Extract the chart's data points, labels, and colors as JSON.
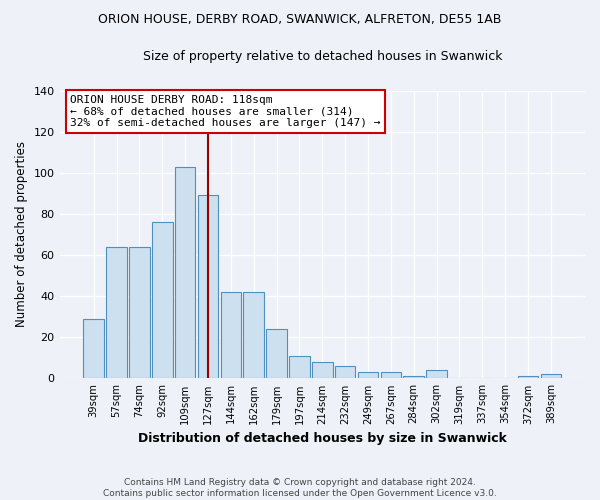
{
  "title1": "ORION HOUSE, DERBY ROAD, SWANWICK, ALFRETON, DE55 1AB",
  "title2": "Size of property relative to detached houses in Swanwick",
  "xlabel": "Distribution of detached houses by size in Swanwick",
  "ylabel": "Number of detached properties",
  "categories": [
    "39sqm",
    "57sqm",
    "74sqm",
    "92sqm",
    "109sqm",
    "127sqm",
    "144sqm",
    "162sqm",
    "179sqm",
    "197sqm",
    "214sqm",
    "232sqm",
    "249sqm",
    "267sqm",
    "284sqm",
    "302sqm",
    "319sqm",
    "337sqm",
    "354sqm",
    "372sqm",
    "389sqm"
  ],
  "values": [
    29,
    64,
    64,
    76,
    103,
    89,
    42,
    42,
    24,
    11,
    8,
    6,
    3,
    3,
    1,
    4,
    0,
    0,
    0,
    1,
    2
  ],
  "bar_color": "#cce0f0",
  "bar_edge_color": "#5090c0",
  "vline_x_idx": 5,
  "vline_color": "#990000",
  "annotation_text": "ORION HOUSE DERBY ROAD: 118sqm\n← 68% of detached houses are smaller (314)\n32% of semi-detached houses are larger (147) →",
  "annotation_box_color": "#ffffff",
  "annotation_box_edge": "#cc0000",
  "ylim": [
    0,
    140
  ],
  "yticks": [
    0,
    20,
    40,
    60,
    80,
    100,
    120,
    140
  ],
  "bg_color": "#eef2f8",
  "grid_color": "#ffffff",
  "footnote": "Contains HM Land Registry data © Crown copyright and database right 2024.\nContains public sector information licensed under the Open Government Licence v3.0."
}
